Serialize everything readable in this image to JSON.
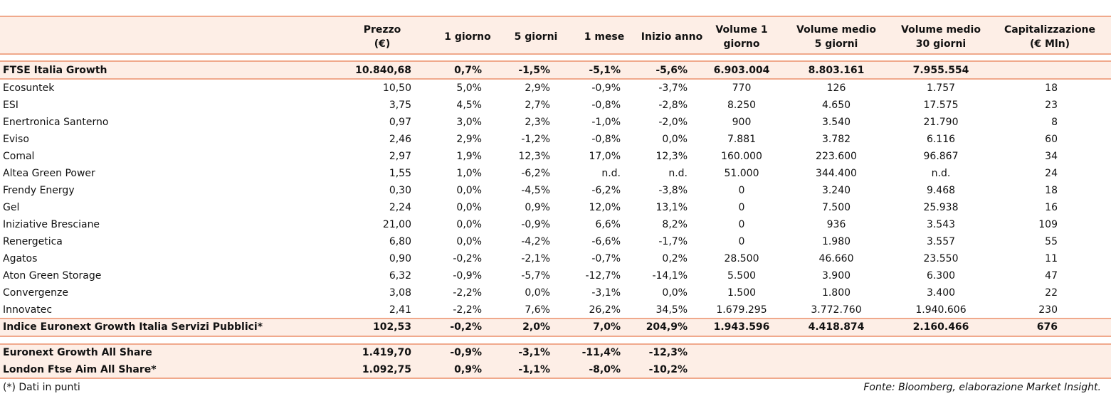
{
  "table": {
    "headers": [
      [
        "Prezzo",
        "(€)"
      ],
      [
        "1 giorno"
      ],
      [
        "5 giorni"
      ],
      [
        "1 mese"
      ],
      [
        "Inizio anno"
      ],
      [
        "Volume 1",
        "giorno"
      ],
      [
        "Volume medio",
        "5 giorni"
      ],
      [
        "Volume medio",
        "30 giorni"
      ],
      [
        "Capitalizzazione",
        "(€ Mln)"
      ]
    ],
    "summary": [
      "FTSE Italia Growth",
      "10.840,68",
      "0,7%",
      "-1,5%",
      "-5,1%",
      "-5,6%",
      "6.903.004",
      "8.803.161",
      "7.955.554"
    ],
    "companies": [
      [
        "Ecosuntek",
        "10,50",
        "5,0%",
        "2,9%",
        "-0,9%",
        "-3,7%",
        "770",
        "126",
        "1.757",
        "18"
      ],
      [
        "ESI",
        "3,75",
        "4,5%",
        "2,7%",
        "-0,8%",
        "-2,8%",
        "8.250",
        "4.650",
        "17.575",
        "23"
      ],
      [
        "Enertronica Santerno",
        "0,97",
        "3,0%",
        "2,3%",
        "-1,0%",
        "-2,0%",
        "900",
        "3.540",
        "21.790",
        "8"
      ],
      [
        "Eviso",
        "2,46",
        "2,9%",
        "-1,2%",
        "-0,8%",
        "0,0%",
        "7.881",
        "3.782",
        "6.116",
        "60"
      ],
      [
        "Comal",
        "2,97",
        "1,9%",
        "12,3%",
        "17,0%",
        "12,3%",
        "160.000",
        "223.600",
        "96.867",
        "34"
      ],
      [
        "Altea Green Power",
        "1,55",
        "1,0%",
        "-6,2%",
        "n.d.",
        "n.d.",
        "51.000",
        "344.400",
        "n.d.",
        "24"
      ],
      [
        "Frendy Energy",
        "0,30",
        "0,0%",
        "-4,5%",
        "-6,2%",
        "-3,8%",
        "0",
        "3.240",
        "9.468",
        "18"
      ],
      [
        "Gel",
        "2,24",
        "0,0%",
        "0,9%",
        "12,0%",
        "13,1%",
        "0",
        "7.500",
        "25.938",
        "16"
      ],
      [
        "Iniziative Bresciane",
        "21,00",
        "0,0%",
        "-0,9%",
        "6,6%",
        "8,2%",
        "0",
        "936",
        "3.543",
        "109"
      ],
      [
        "Renergetica",
        "6,80",
        "0,0%",
        "-4,2%",
        "-6,6%",
        "-1,7%",
        "0",
        "1.980",
        "3.557",
        "55"
      ],
      [
        "Agatos",
        "0,90",
        "-0,2%",
        "-2,1%",
        "-0,7%",
        "0,2%",
        "28.500",
        "46.660",
        "23.550",
        "11"
      ],
      [
        "Aton Green Storage",
        "6,32",
        "-0,9%",
        "-5,7%",
        "-12,7%",
        "-14,1%",
        "5.500",
        "3.900",
        "6.300",
        "47"
      ],
      [
        "Convergenze",
        "3,08",
        "-2,2%",
        "0,0%",
        "-3,1%",
        "0,0%",
        "1.500",
        "1.800",
        "3.400",
        "22"
      ],
      [
        "Innovatec",
        "2,41",
        "-2,2%",
        "7,6%",
        "26,2%",
        "34,5%",
        "1.679.295",
        "3.772.760",
        "1.940.606",
        "230"
      ]
    ],
    "index": [
      "Indice Euronext Growth Italia Servizi Pubblici*",
      "102,53",
      "-0,2%",
      "2,0%",
      "7,0%",
      "204,9%",
      "1.943.596",
      "4.418.874",
      "2.160.466",
      "676"
    ],
    "benchmarks": [
      [
        "Euronext Growth All Share",
        "1.419,70",
        "-0,9%",
        "-3,1%",
        "-11,4%",
        "-12,3%"
      ],
      [
        "London Ftse Aim All Share*",
        "1.092,75",
        "0,9%",
        "-1,1%",
        "-8,0%",
        "-10,2%"
      ]
    ],
    "note": "(*) Dati in punti",
    "source": "Fonte: Bloomberg, elaborazione Market Insight."
  }
}
